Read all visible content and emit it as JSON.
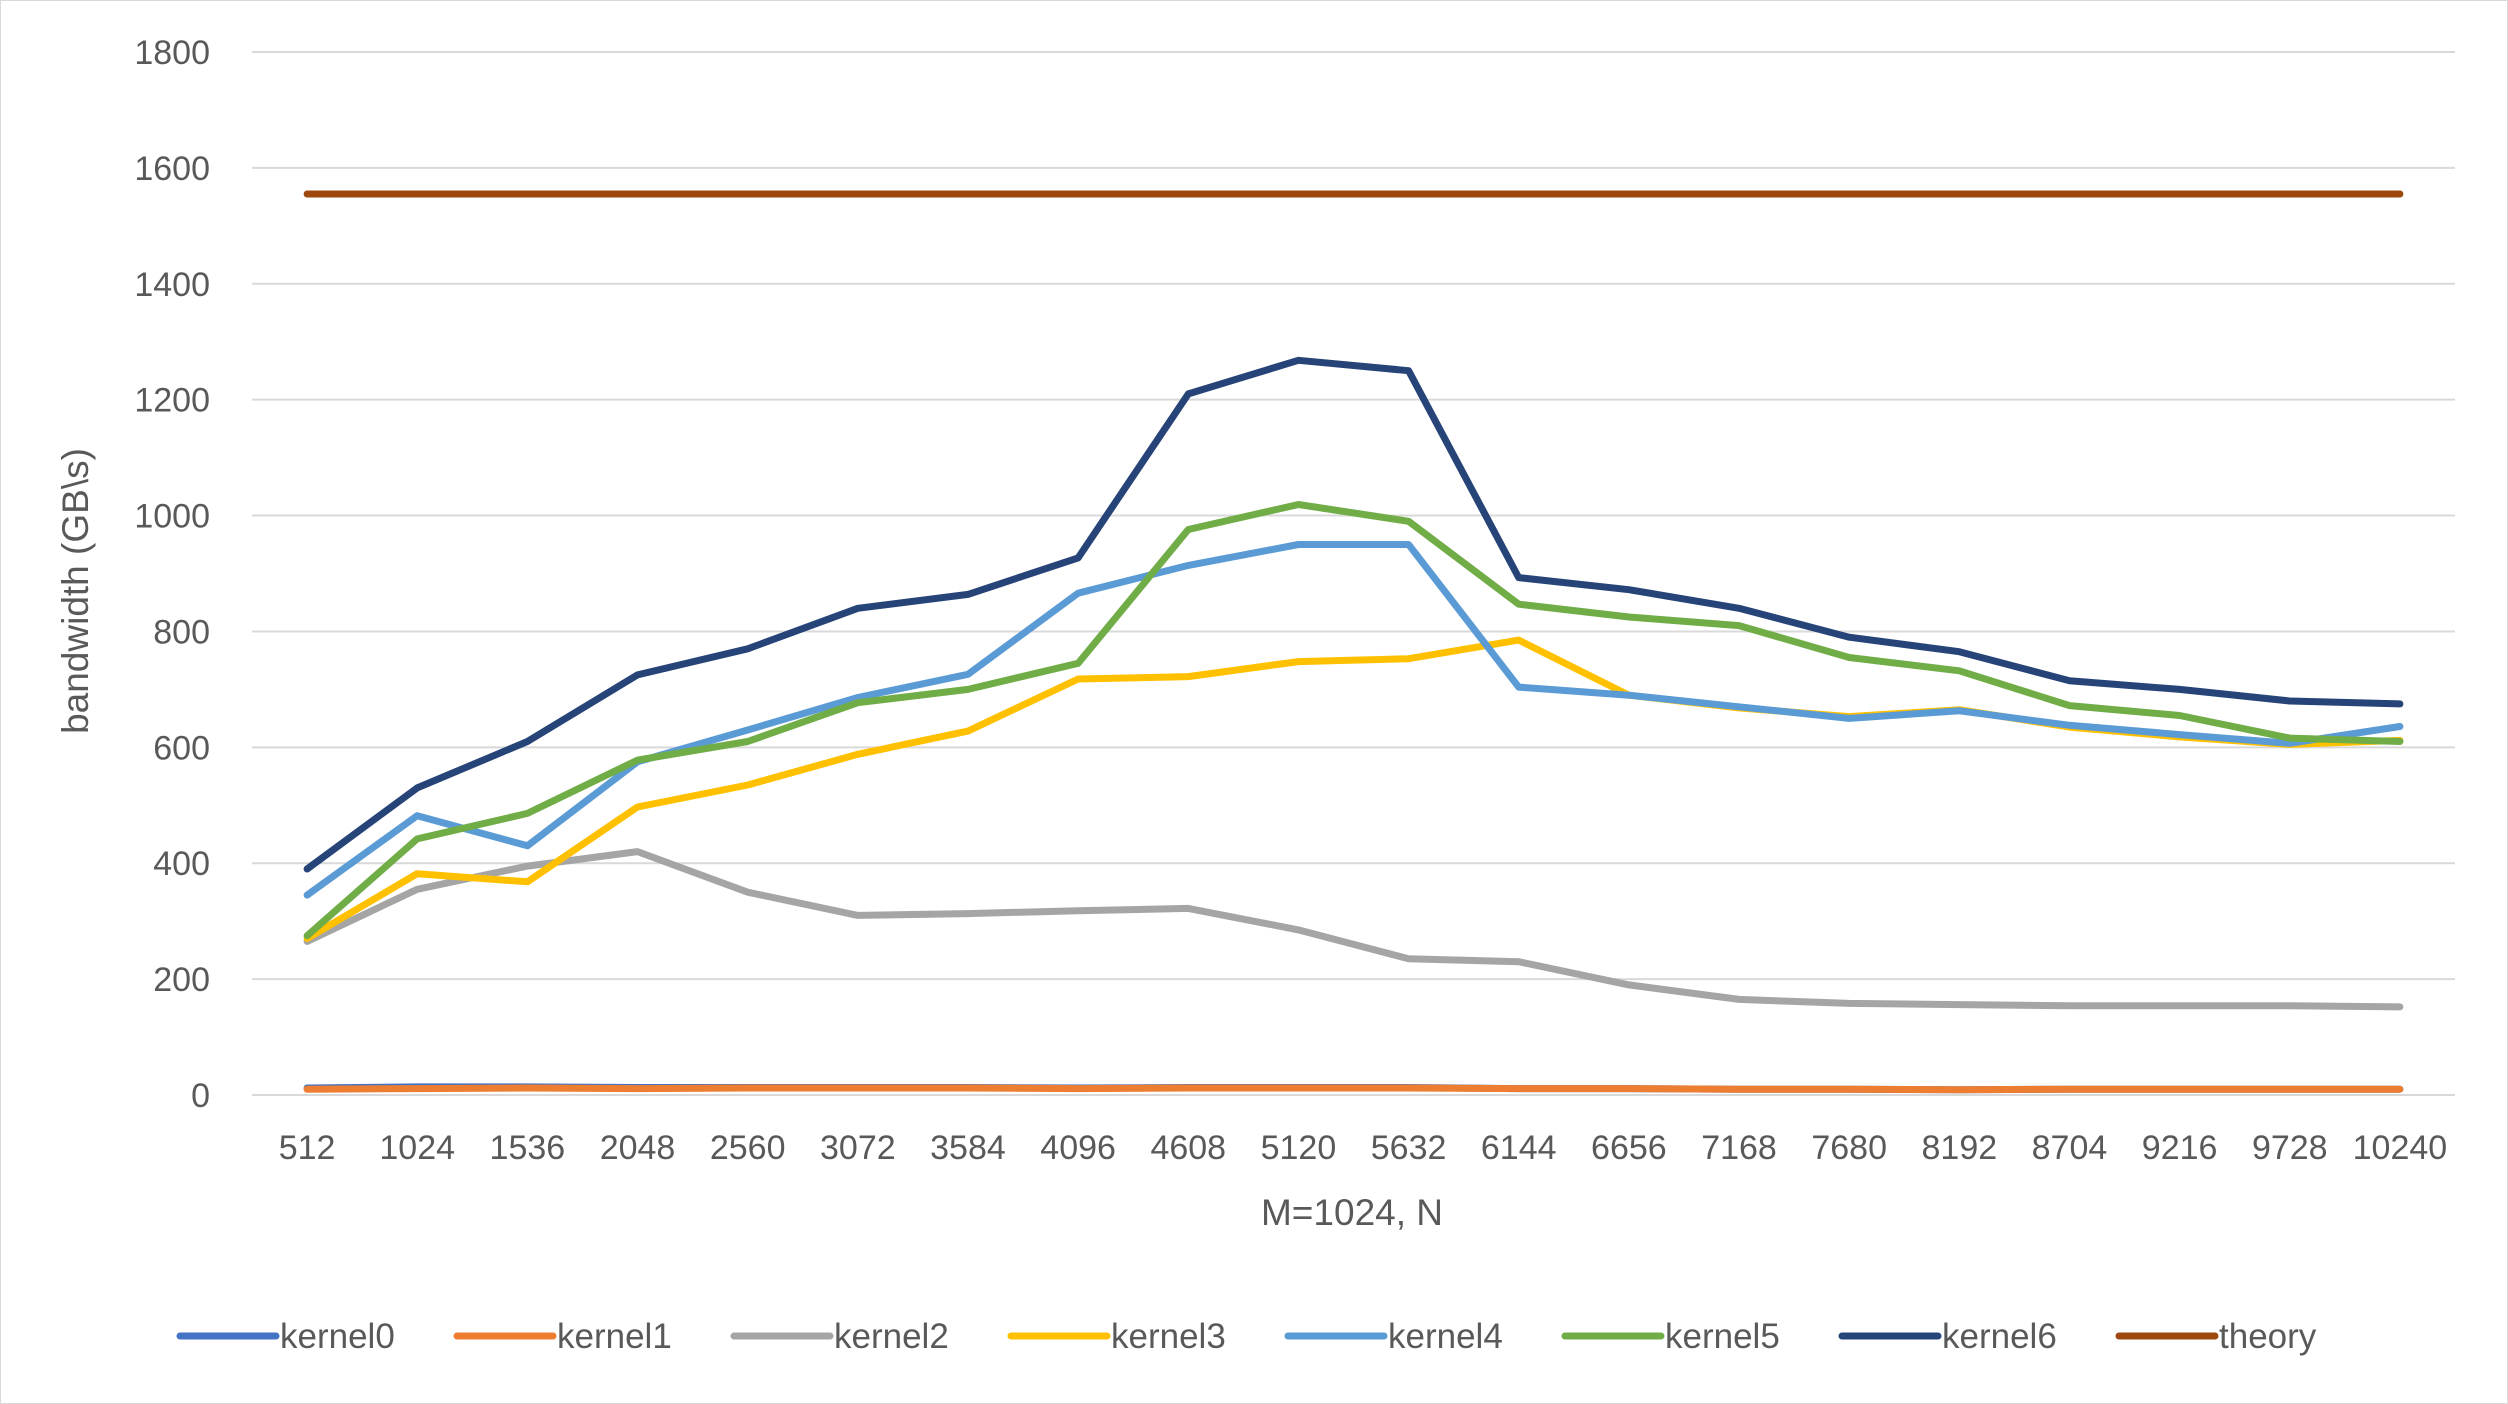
{
  "chart_data": {
    "type": "line",
    "title": "",
    "xlabel": "M=1024, N",
    "ylabel": "bandwidth (GB\\s)",
    "ylim": [
      0,
      1800
    ],
    "yticks": [
      0,
      200,
      400,
      600,
      800,
      1000,
      1200,
      1400,
      1600,
      1800
    ],
    "grid": "horizontal",
    "legend_position": "bottom",
    "categories": [
      "512",
      "1024",
      "1536",
      "2048",
      "2560",
      "3072",
      "3584",
      "4096",
      "4608",
      "5120",
      "5632",
      "6144",
      "6656",
      "7168",
      "7680",
      "8192",
      "8704",
      "9216",
      "9728",
      "10240"
    ],
    "series": [
      {
        "name": "kernel0",
        "color": "#4472C4",
        "values": [
          12,
          14,
          14,
          13,
          13,
          13,
          13,
          12,
          13,
          13,
          13,
          11,
          11,
          10,
          10,
          9,
          10,
          10,
          10,
          10
        ]
      },
      {
        "name": "kernel1",
        "color": "#ED7D31",
        "values": [
          10,
          11,
          12,
          11,
          12,
          12,
          12,
          11,
          12,
          12,
          12,
          11,
          11,
          10,
          10,
          9,
          10,
          10,
          10,
          10
        ]
      },
      {
        "name": "kernel2",
        "color": "#A5A5A5",
        "values": [
          265,
          355,
          395,
          420,
          350,
          310,
          313,
          318,
          322,
          285,
          235,
          230,
          190,
          165,
          158,
          156,
          154,
          154,
          154,
          152
        ]
      },
      {
        "name": "kernel3",
        "color": "#FFC000",
        "values": [
          270,
          382,
          368,
          497,
          535,
          588,
          628,
          718,
          722,
          748,
          753,
          785,
          690,
          668,
          653,
          665,
          635,
          618,
          605,
          612
        ]
      },
      {
        "name": "kernel4",
        "color": "#5B9BD5",
        "values": [
          345,
          482,
          430,
          575,
          630,
          686,
          726,
          866,
          914,
          950,
          950,
          704,
          690,
          670,
          650,
          663,
          638,
          622,
          607,
          636
        ]
      },
      {
        "name": "kernel5",
        "color": "#70AD47",
        "values": [
          275,
          442,
          486,
          578,
          610,
          677,
          700,
          745,
          976,
          1019,
          990,
          847,
          825,
          810,
          755,
          732,
          672,
          655,
          616,
          610
        ]
      },
      {
        "name": "kernel6",
        "color": "#264478",
        "values": [
          390,
          530,
          610,
          725,
          770,
          840,
          864,
          927,
          1210,
          1268,
          1250,
          893,
          872,
          840,
          790,
          765,
          715,
          700,
          680,
          675
        ]
      },
      {
        "name": "theory",
        "color": "#9E480E",
        "values": [
          1555,
          1555,
          1555,
          1555,
          1555,
          1555,
          1555,
          1555,
          1555,
          1555,
          1555,
          1555,
          1555,
          1555,
          1555,
          1555,
          1555,
          1555,
          1555,
          1555
        ]
      }
    ]
  },
  "style": {
    "gridline_color": "#d9d9d9",
    "axis_line_color": "#d9d9d9"
  }
}
